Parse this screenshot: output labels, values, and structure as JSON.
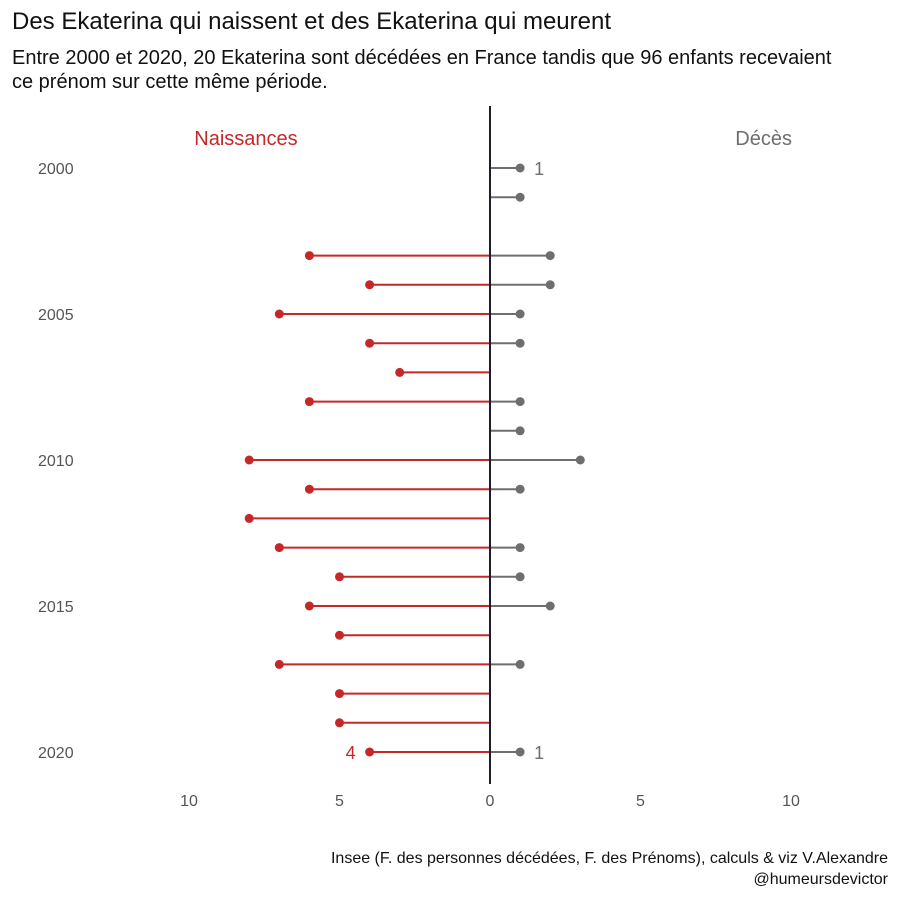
{
  "chart_data": {
    "type": "bar",
    "title": "Des Ekaterina qui naissent et des Ekaterina qui meurent",
    "subtitle": "Entre 2000 et 2020, 20 Ekaterina sont décédées en France tandis que 96 enfants recevaient ce prénom sur cette même période.",
    "caption": "Insee (F. des personnes décédées, F. des Prénoms), calculs & viz V.Alexandre @humeursdevictor",
    "xlabel": "",
    "ylabel": "",
    "xlim": [
      -13.3,
      13.3
    ],
    "x_ticks": [
      {
        "value": -10,
        "label": "10"
      },
      {
        "value": -5,
        "label": "5"
      },
      {
        "value": 0,
        "label": "0"
      },
      {
        "value": 5,
        "label": "5"
      },
      {
        "value": 10,
        "label": "10"
      }
    ],
    "y_tick_years": [
      "2000",
      "2005",
      "2010",
      "2015",
      "2020"
    ],
    "years": [
      2000,
      2001,
      2002,
      2003,
      2004,
      2005,
      2006,
      2007,
      2008,
      2009,
      2010,
      2011,
      2012,
      2013,
      2014,
      2015,
      2016,
      2017,
      2018,
      2019,
      2020
    ],
    "series": [
      {
        "name": "Naissances",
        "color": "#c62828",
        "values": [
          0,
          0,
          0,
          6,
          4,
          7,
          4,
          3,
          6,
          0,
          8,
          6,
          8,
          7,
          5,
          6,
          5,
          7,
          5,
          5,
          4
        ]
      },
      {
        "name": "Décès",
        "color": "#6e6e6e",
        "values": [
          1,
          1,
          0,
          2,
          2,
          1,
          1,
          0,
          1,
          1,
          3,
          1,
          0,
          1,
          1,
          2,
          0,
          1,
          0,
          0,
          1
        ]
      }
    ],
    "value_labels": [
      {
        "series": "Décès",
        "year": 2000,
        "text": "1"
      },
      {
        "series": "Naissances",
        "year": 2020,
        "text": "4"
      },
      {
        "series": "Décès",
        "year": 2020,
        "text": "1"
      }
    ],
    "legend_placement": "top-left and top-right",
    "grid": false,
    "axis_color": "#1a1f2b"
  }
}
